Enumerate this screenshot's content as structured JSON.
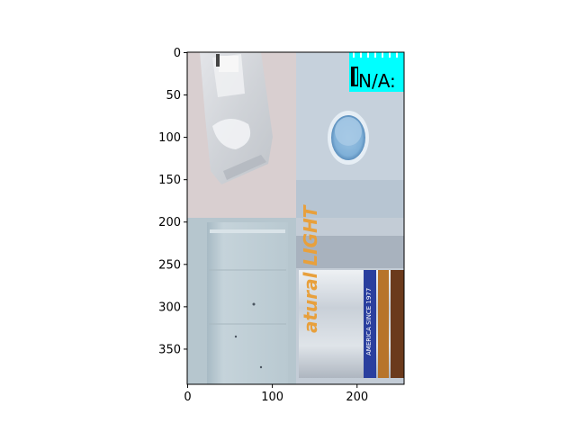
{
  "chart_data": {
    "type": "image",
    "title": "",
    "xlabel": "",
    "ylabel": "",
    "xlim": [
      -0.5,
      255.5
    ],
    "ylim": [
      391.5,
      -0.5
    ],
    "x_ticks": [
      0,
      100,
      200
    ],
    "y_ticks": [
      0,
      50,
      100,
      150,
      200,
      250,
      300,
      350
    ],
    "grid": false,
    "panels": [
      {
        "name": "plastic-bag-photo",
        "row": 0,
        "col": 0,
        "bg": "#d9cfd0"
      },
      {
        "name": "lid-photo",
        "row": 0,
        "col": 1,
        "bg": "#c6d1dc"
      },
      {
        "name": "cardboard-photo",
        "row": 1,
        "col": 0,
        "bg": "#b6c6ce"
      },
      {
        "name": "beer-can-photo",
        "row": 1,
        "col": 1,
        "bg": "#c3ccd6"
      }
    ],
    "panel_grid": {
      "rows": 2,
      "cols": 2,
      "cell_w": 128,
      "cell_h": 196
    },
    "annotations": [
      {
        "text": "N/A:",
        "panel": "lid-photo",
        "box_color": "#00ffff"
      }
    ],
    "photo_text": {
      "can_brand": "atural LIGHT",
      "can_banner": "AMERICA SINCE 1977"
    }
  }
}
